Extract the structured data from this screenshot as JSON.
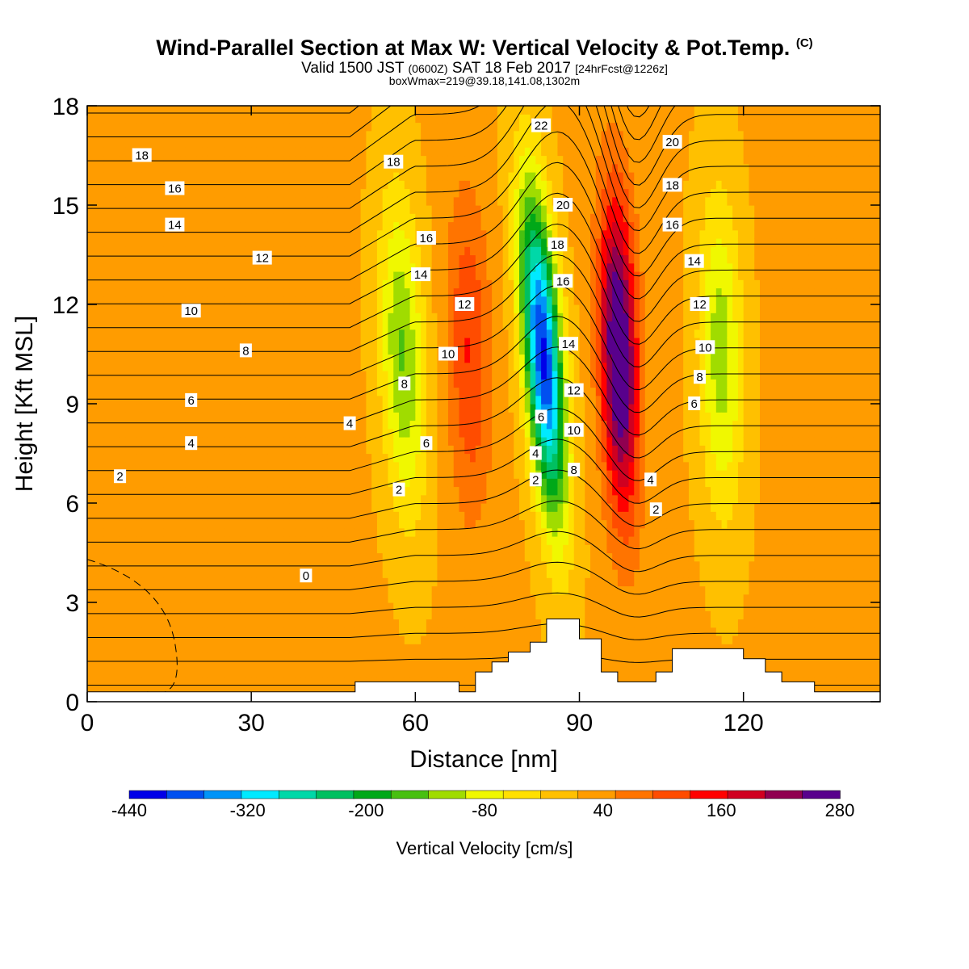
{
  "header": {
    "title": "Wind-Parallel Section at Max W: Vertical Velocity & Pot.Temp.",
    "title_mark": "(C)",
    "valid_a": "Valid 1500 JST",
    "valid_b": "(0600Z)",
    "valid_c": "SAT 18 Feb 2017",
    "valid_d": "[24hrFcst@1226z]",
    "box": "boxWmax=219@39.18,141.08,1302m"
  },
  "chart_data": {
    "type": "heatmap",
    "xlabel": "Distance [nm]",
    "ylabel": "Height [Kft MSL]",
    "xlim": [
      0,
      145
    ],
    "ylim": [
      0,
      18
    ],
    "x_ticks": [
      0,
      30,
      60,
      90,
      120
    ],
    "y_ticks": [
      0,
      3,
      6,
      9,
      12,
      15,
      18
    ],
    "colorbar": {
      "label": "Vertical Velocity [cm/s]",
      "ticks": [
        -440,
        -320,
        -200,
        -80,
        40,
        160,
        280
      ],
      "levels": [
        -440,
        280
      ],
      "colors": [
        "#0000e8",
        "#0050f0",
        "#0094f8",
        "#00eaff",
        "#00d8a8",
        "#00c060",
        "#00a818",
        "#48c010",
        "#a0dc00",
        "#f0f800",
        "#ffe000",
        "#ffc000",
        "#ff9c00",
        "#ff7400",
        "#ff4c00",
        "#ff0000",
        "#d00020",
        "#900050",
        "#58008c"
      ]
    },
    "velocity_bands": [
      {
        "x_bottom": 88,
        "x_top": 80,
        "w": -430
      },
      {
        "x_bottom": 99,
        "x_top": 96,
        "w": 290
      },
      {
        "x_bottom": 117,
        "x_top": 115,
        "w": -140
      },
      {
        "x_bottom": 60,
        "x_top": 56,
        "w": -160
      },
      {
        "x_bottom": 71,
        "x_top": 69,
        "w": 110
      }
    ],
    "contour_labels": [
      {
        "x": 10,
        "y": 16.5,
        "text": "18"
      },
      {
        "x": 16,
        "y": 15.5,
        "text": "16"
      },
      {
        "x": 16,
        "y": 14.4,
        "text": "14"
      },
      {
        "x": 32,
        "y": 13.4,
        "text": "12"
      },
      {
        "x": 19,
        "y": 11.8,
        "text": "10"
      },
      {
        "x": 29,
        "y": 10.6,
        "text": "8"
      },
      {
        "x": 19,
        "y": 9.1,
        "text": "6"
      },
      {
        "x": 19,
        "y": 7.8,
        "text": "4"
      },
      {
        "x": 6,
        "y": 6.8,
        "text": "2"
      },
      {
        "x": 40,
        "y": 3.8,
        "text": "0"
      },
      {
        "x": 48,
        "y": 8.4,
        "text": "4"
      },
      {
        "x": 56,
        "y": 16.3,
        "text": "18"
      },
      {
        "x": 62,
        "y": 14.0,
        "text": "16"
      },
      {
        "x": 61,
        "y": 12.9,
        "text": "14"
      },
      {
        "x": 69,
        "y": 12.0,
        "text": "12"
      },
      {
        "x": 66,
        "y": 10.5,
        "text": "10"
      },
      {
        "x": 58,
        "y": 9.6,
        "text": "8"
      },
      {
        "x": 62,
        "y": 7.8,
        "text": "6"
      },
      {
        "x": 57,
        "y": 6.4,
        "text": "2"
      },
      {
        "x": 83,
        "y": 17.4,
        "text": "22"
      },
      {
        "x": 87,
        "y": 15.0,
        "text": "20"
      },
      {
        "x": 86,
        "y": 13.8,
        "text": "18"
      },
      {
        "x": 87,
        "y": 12.7,
        "text": "16"
      },
      {
        "x": 88,
        "y": 10.8,
        "text": "14"
      },
      {
        "x": 89,
        "y": 9.4,
        "text": "12"
      },
      {
        "x": 89,
        "y": 8.2,
        "text": "10"
      },
      {
        "x": 83,
        "y": 8.6,
        "text": "6"
      },
      {
        "x": 82,
        "y": 7.5,
        "text": "4"
      },
      {
        "x": 82,
        "y": 6.7,
        "text": "2"
      },
      {
        "x": 89,
        "y": 7.0,
        "text": "8"
      },
      {
        "x": 107,
        "y": 16.9,
        "text": "20"
      },
      {
        "x": 107,
        "y": 15.6,
        "text": "18"
      },
      {
        "x": 107,
        "y": 14.4,
        "text": "16"
      },
      {
        "x": 111,
        "y": 13.3,
        "text": "14"
      },
      {
        "x": 112,
        "y": 12.0,
        "text": "12"
      },
      {
        "x": 113,
        "y": 10.7,
        "text": "10"
      },
      {
        "x": 112,
        "y": 9.8,
        "text": "8"
      },
      {
        "x": 111,
        "y": 9.0,
        "text": "6"
      },
      {
        "x": 103,
        "y": 6.7,
        "text": "4"
      },
      {
        "x": 104,
        "y": 5.8,
        "text": "2"
      }
    ],
    "terrain": [
      [
        0,
        0.3
      ],
      [
        49,
        0.3
      ],
      [
        49,
        0.6
      ],
      [
        68,
        0.6
      ],
      [
        68,
        0.3
      ],
      [
        71,
        0.3
      ],
      [
        71,
        0.9
      ],
      [
        74,
        0.9
      ],
      [
        74,
        1.2
      ],
      [
        77,
        1.2
      ],
      [
        77,
        1.5
      ],
      [
        81,
        1.5
      ],
      [
        81,
        1.8
      ],
      [
        84,
        1.8
      ],
      [
        84,
        2.5
      ],
      [
        90,
        2.5
      ],
      [
        90,
        1.9
      ],
      [
        94,
        1.9
      ],
      [
        94,
        0.9
      ],
      [
        97,
        0.9
      ],
      [
        97,
        0.6
      ],
      [
        104,
        0.6
      ],
      [
        104,
        0.9
      ],
      [
        107,
        0.9
      ],
      [
        107,
        1.6
      ],
      [
        120,
        1.6
      ],
      [
        120,
        1.3
      ],
      [
        124,
        1.3
      ],
      [
        124,
        0.9
      ],
      [
        127,
        0.9
      ],
      [
        127,
        0.6
      ],
      [
        133,
        0.6
      ],
      [
        133,
        0.3
      ],
      [
        145,
        0.3
      ]
    ]
  }
}
